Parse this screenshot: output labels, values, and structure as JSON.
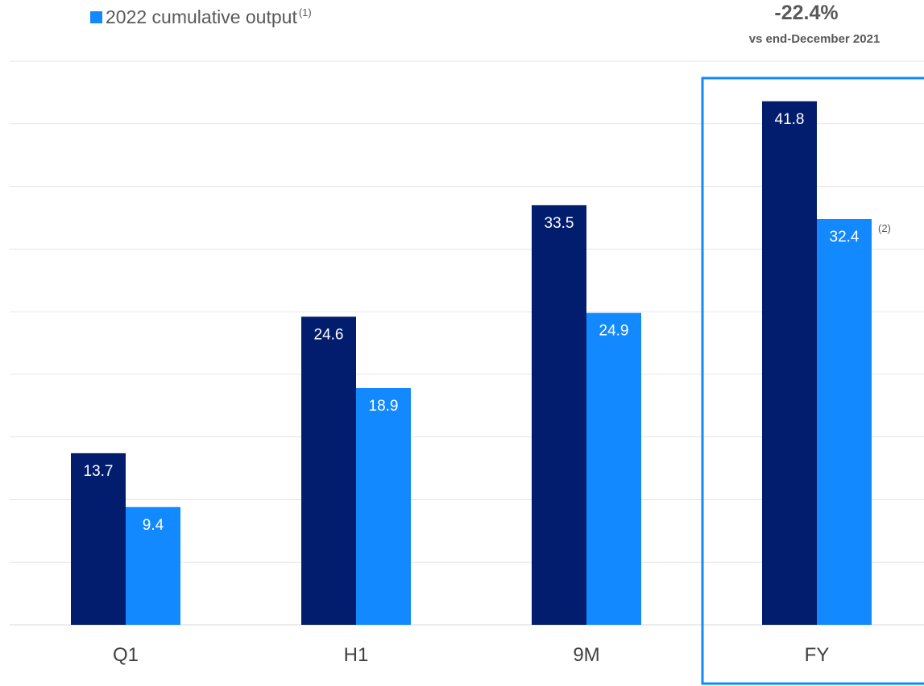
{
  "legend": {
    "label": "2022 cumulative output",
    "note": "(1)"
  },
  "callout": {
    "value": "-22.4%",
    "caption": "vs end-December 2021"
  },
  "colors": {
    "series_2021": "#021c6e",
    "series_2022": "#1289ff",
    "highlight_box": "#1289ff",
    "grid": "#e6e6e6",
    "axis_text": "#404040"
  },
  "chart_data": {
    "type": "bar",
    "categories": [
      "Q1",
      "H1",
      "9M",
      "FY"
    ],
    "series": [
      {
        "values": [
          13.7,
          24.6,
          33.5,
          41.8
        ]
      },
      {
        "name": "2022 cumulative output",
        "values": [
          9.4,
          18.9,
          24.9,
          32.4
        ]
      }
    ],
    "value_notes": [
      null,
      null,
      null,
      "(2)"
    ],
    "highlighted_category": "FY",
    "ylim": [
      0,
      45
    ],
    "grid": true,
    "legend_position": "top-left"
  }
}
